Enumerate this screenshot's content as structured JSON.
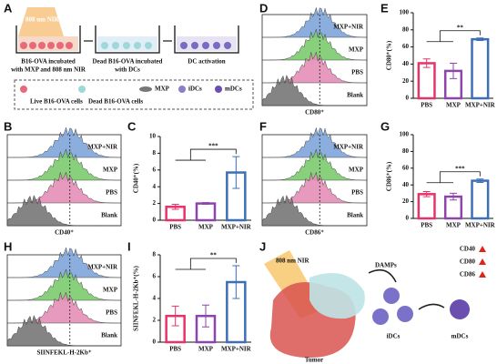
{
  "panel_labels": [
    "A",
    "B",
    "C",
    "D",
    "E",
    "F",
    "G",
    "H",
    "I",
    "J"
  ],
  "schematic": {
    "nir": "808 nm NIR",
    "steps": [
      [
        "B16-OVA incubated",
        "with MXP and 808 nm NIR"
      ],
      [
        "Dead B16-OVA incubated",
        "with DCs"
      ],
      [
        "DC activation"
      ]
    ],
    "legend": [
      "Live B16-OVA cells",
      "Dead B16-OVA cells",
      "MXP",
      "iDCs",
      "mDCs"
    ]
  },
  "histograms": [
    {
      "x_label": "CD40⁺",
      "samples": [
        "MXP+NIR",
        "MXP",
        "PBS",
        "Blank"
      ]
    },
    {
      "x_label": "CD80⁺",
      "samples": [
        "MXP+NIR",
        "MXP",
        "PBS",
        "Blank"
      ]
    },
    {
      "x_label": "CD86⁺",
      "samples": [
        "MXP+NIR",
        "MXP",
        "PBS",
        "Blank"
      ]
    },
    {
      "x_label": "SIINFEKL-H-2Kb⁺",
      "samples": [
        "MXP+NIR",
        "MXP",
        "PBS",
        "Blank"
      ]
    }
  ],
  "chart_data": [
    {
      "type": "bar",
      "y_label": "CD40⁺(%)",
      "categories": [
        "PBS",
        "MXP",
        "MXP+NIR"
      ],
      "values": [
        1.6,
        2.0,
        5.7
      ],
      "errors": [
        0.3,
        0.1,
        1.9
      ],
      "colors": [
        "#e8336a",
        "#8e44ad",
        "#3d6fb8"
      ],
      "ylim": [
        0,
        10
      ],
      "yticks": [
        0,
        2,
        4,
        6,
        8,
        10
      ],
      "significance": "***"
    },
    {
      "type": "bar",
      "y_label": "CD80⁺(%)",
      "categories": [
        "PBS",
        "MXP",
        "MXP+NIR"
      ],
      "values": [
        41,
        32,
        69
      ],
      "errors": [
        5,
        9,
        1.5
      ],
      "colors": [
        "#e8336a",
        "#8e44ad",
        "#3d6fb8"
      ],
      "ylim": [
        0,
        100
      ],
      "yticks": [
        0,
        20,
        40,
        60,
        80,
        100
      ],
      "significance": "**"
    },
    {
      "type": "bar",
      "y_label": "CD86⁺(%)",
      "categories": [
        "PBS",
        "MXP",
        "MXP+NIR"
      ],
      "values": [
        29,
        26,
        45
      ],
      "errors": [
        3,
        4,
        2
      ],
      "colors": [
        "#e8336a",
        "#8e44ad",
        "#3d6fb8"
      ],
      "ylim": [
        0,
        100
      ],
      "yticks": [
        0,
        20,
        40,
        60,
        80,
        100
      ],
      "significance": "***"
    },
    {
      "type": "bar",
      "y_label": "SIINFEKL-H-2Kb⁺(%)",
      "categories": [
        "PBS",
        "MXP",
        "MXP+NIR"
      ],
      "values": [
        2.4,
        2.4,
        5.5
      ],
      "errors": [
        0.9,
        1.0,
        1.5
      ],
      "colors": [
        "#e8336a",
        "#8e44ad",
        "#3d6fb8"
      ],
      "ylim": [
        0,
        8
      ],
      "yticks": [
        0,
        2,
        4,
        6,
        8
      ],
      "significance": "**"
    }
  ],
  "model": {
    "nir": "808 nm NIR",
    "damps": "DAMPs",
    "markers": [
      "CD40",
      "CD80",
      "CD86"
    ],
    "tumor": "Tumor",
    "idcs": "iDCs",
    "mdcs": "mDCs"
  }
}
